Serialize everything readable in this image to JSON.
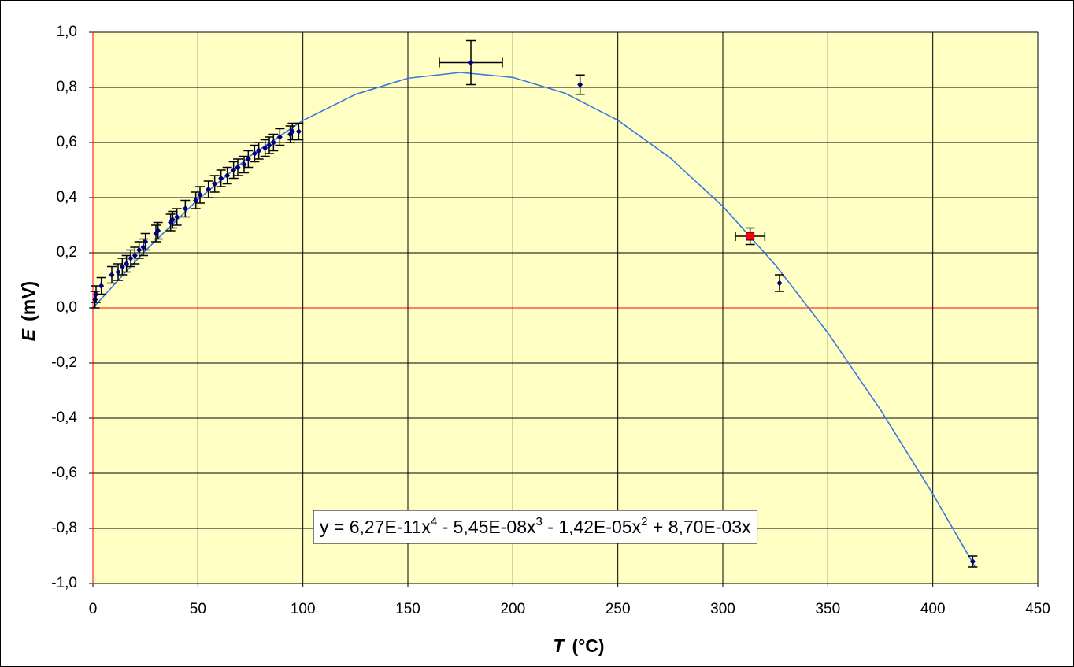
{
  "chart_data": {
    "type": "scatter",
    "xlabel": {
      "symbol": "T",
      "unit": "(°C)"
    },
    "ylabel": {
      "symbol": "E",
      "unit": "(mV)"
    },
    "annotation_parts": [
      "y = 6,27E-11x",
      "4",
      " - 5,45E-08x",
      "3",
      " - 1,42E-05x",
      "2",
      " + 8,70E-03x"
    ],
    "xlim": [
      0,
      450
    ],
    "ylim": [
      -1,
      1
    ],
    "xticks": [
      0,
      50,
      100,
      150,
      200,
      250,
      300,
      350,
      400,
      450
    ],
    "yticks": [
      {
        "value": -1,
        "label": "-1,0"
      },
      {
        "value": -0.8,
        "label": "-0,8"
      },
      {
        "value": -0.6,
        "label": "-0,6"
      },
      {
        "value": -0.4,
        "label": "-0,4"
      },
      {
        "value": -0.2,
        "label": "-0,2"
      },
      {
        "value": 0,
        "label": "0,0"
      },
      {
        "value": 0.2,
        "label": "0,2"
      },
      {
        "value": 0.4,
        "label": "0,4"
      },
      {
        "value": 0.6,
        "label": "0,6"
      },
      {
        "value": 0.8,
        "label": "0,8"
      },
      {
        "value": 1,
        "label": "1,0"
      }
    ],
    "grid": true,
    "background": "#ffffc4",
    "zero_line_color": "#ff0000",
    "series": [
      {
        "color": "#000080",
        "marker": "diamond",
        "x": [
          1,
          1.5,
          4,
          9,
          12,
          14,
          16,
          18,
          20,
          22,
          24,
          25,
          30,
          31,
          37,
          38,
          40,
          44,
          49,
          51,
          55,
          58,
          61,
          64,
          67,
          69,
          72,
          74,
          77,
          79,
          82,
          84,
          86,
          89,
          94,
          95,
          98,
          180,
          232,
          327,
          419
        ],
        "values": [
          0.03,
          0.05,
          0.08,
          0.12,
          0.13,
          0.15,
          0.16,
          0.18,
          0.19,
          0.21,
          0.22,
          0.24,
          0.27,
          0.28,
          0.31,
          0.32,
          0.33,
          0.36,
          0.39,
          0.41,
          0.43,
          0.45,
          0.47,
          0.48,
          0.5,
          0.51,
          0.52,
          0.54,
          0.56,
          0.57,
          0.58,
          0.59,
          0.6,
          0.62,
          0.63,
          0.64,
          0.64,
          0.89,
          0.81,
          0.09,
          -0.92
        ],
        "yerr": [
          0.03,
          0.03,
          0.03,
          0.03,
          0.03,
          0.03,
          0.03,
          0.03,
          0.03,
          0.03,
          0.03,
          0.03,
          0.03,
          0.03,
          0.03,
          0.03,
          0.03,
          0.03,
          0.03,
          0.03,
          0.03,
          0.03,
          0.03,
          0.03,
          0.03,
          0.03,
          0.03,
          0.03,
          0.03,
          0.03,
          0.03,
          0.03,
          0.03,
          0.03,
          0.03,
          0.03,
          0.03,
          0.08,
          0.035,
          0.03,
          0.02
        ],
        "xerr": [
          null,
          null,
          null,
          null,
          null,
          null,
          null,
          null,
          null,
          null,
          null,
          null,
          null,
          null,
          null,
          null,
          null,
          null,
          null,
          null,
          null,
          null,
          null,
          null,
          null,
          null,
          null,
          null,
          null,
          null,
          null,
          null,
          null,
          null,
          null,
          null,
          null,
          15,
          null,
          null,
          null
        ]
      },
      {
        "color": "#ff0000",
        "marker": "square",
        "x": [
          313
        ],
        "values": [
          0.26
        ],
        "yerr": [
          0.03
        ],
        "xerr": [
          7
        ]
      }
    ],
    "fit": {
      "color": "#3a78e0",
      "x": [
        0,
        25,
        50,
        75,
        100,
        125,
        150,
        175,
        200,
        225,
        250,
        275,
        300,
        325,
        350,
        375,
        400,
        420
      ],
      "values": [
        0,
        0.2078,
        0.3931,
        0.5516,
        0.6798,
        0.7745,
        0.8333,
        0.8543,
        0.8363,
        0.7785,
        0.6808,
        0.5438,
        0.3684,
        0.1562,
        -0.0903,
        -0.3685,
        -0.6749,
        -0.9377
      ]
    }
  }
}
